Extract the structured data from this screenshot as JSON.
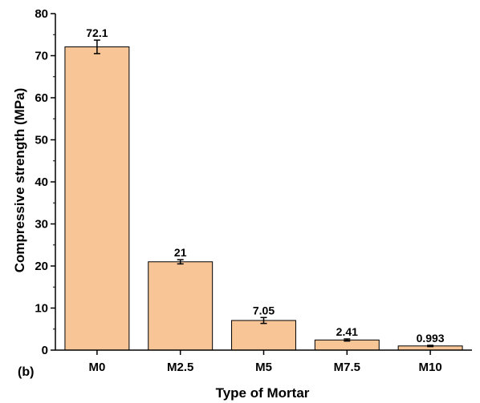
{
  "chart_data": {
    "type": "bar",
    "categories": [
      "M0",
      "M2.5",
      "M5",
      "M7.5",
      "M10"
    ],
    "values": [
      72.1,
      21,
      7.05,
      2.41,
      0.993
    ],
    "value_labels": [
      "72.1",
      "21",
      "7.05",
      "2.41",
      "0.993"
    ],
    "errors": [
      1.6,
      0.5,
      0.7,
      0.25,
      0.15
    ],
    "xlabel": "Type of Mortar",
    "ylabel": "Compressive strength (MPa)",
    "ylim": [
      0,
      80
    ],
    "yticks": [
      0,
      10,
      20,
      30,
      40,
      50,
      60,
      70,
      80
    ],
    "panel_label": "(b)",
    "grid": false,
    "bar_color": "#f8c596",
    "bar_edge_color": "#000000"
  }
}
